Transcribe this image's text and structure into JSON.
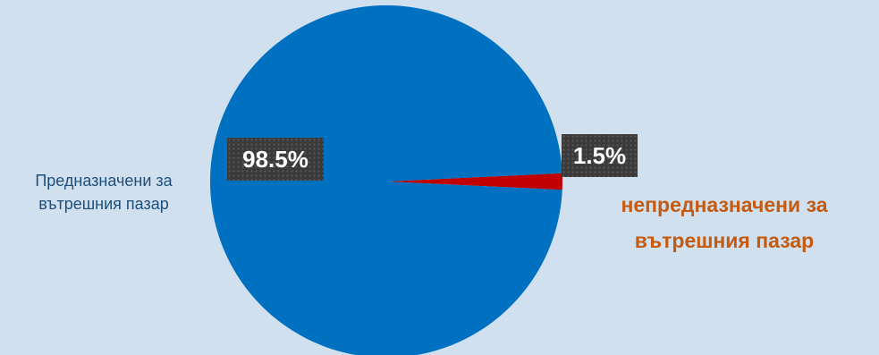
{
  "chart_data": {
    "type": "pie",
    "slices": [
      {
        "name_lines": [
          "Предназначени за",
          "вътрешния пазар"
        ],
        "value": 98.5,
        "value_label": "98.5%",
        "color": "#0070c0"
      },
      {
        "name_lines": [
          "непредназначени за",
          "вътрешния пазар"
        ],
        "value": 1.5,
        "value_label": "1.5%",
        "color": "#c00000"
      }
    ],
    "label_colors": {
      "domestic": "#1f4e79",
      "nondomestic": "#c55a11"
    }
  }
}
